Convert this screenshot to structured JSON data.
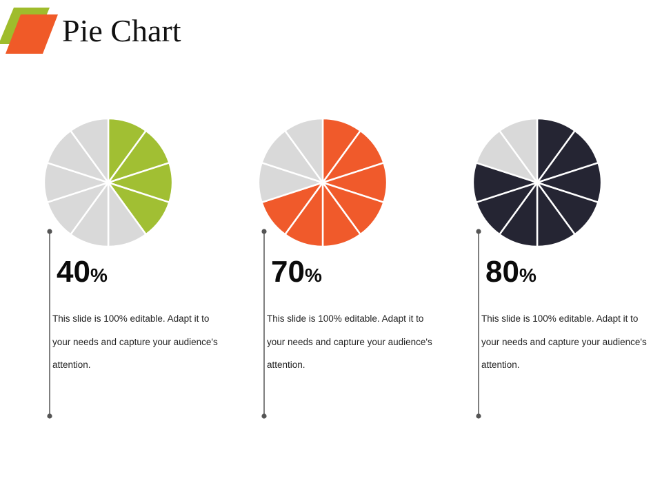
{
  "title": "Pie Chart",
  "colors": {
    "logo_back": "#9fbc2c",
    "logo_front": "#f05a28",
    "inactive_slice": "#d9d9d9",
    "slice_border": "#ffffff",
    "leader_line": "#555555"
  },
  "chart_data": [
    {
      "type": "pie",
      "value_percent": 40,
      "value_label": "40",
      "percent_sign": "%",
      "color": "#a1bf33",
      "total_slices": 10,
      "filled_slices": 4,
      "description": "This slide is 100% editable. Adapt it to your needs and capture your audience's attention."
    },
    {
      "type": "pie",
      "value_percent": 70,
      "value_label": "70",
      "percent_sign": "%",
      "color": "#f05a2b",
      "total_slices": 10,
      "filled_slices": 7,
      "description": "This slide is 100% editable. Adapt it to your needs and capture your audience's attention."
    },
    {
      "type": "pie",
      "value_percent": 80,
      "value_label": "80",
      "percent_sign": "%",
      "color": "#252533",
      "total_slices": 10,
      "filled_slices": 8,
      "description": "This slide is 100% editable. Adapt it to your needs and capture your audience's attention."
    }
  ]
}
